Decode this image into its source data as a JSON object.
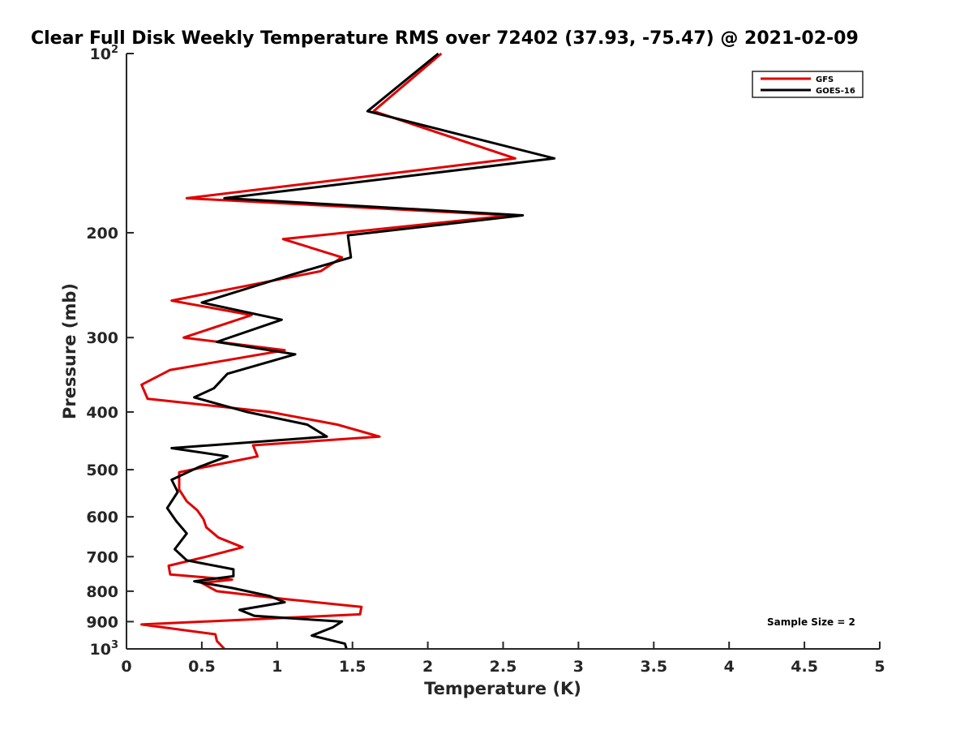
{
  "chart_data": {
    "type": "line",
    "title": "Clear Full Disk Weekly Temperature RMS over 72402 (37.93, -75.47) @ 2021-02-09",
    "xlabel": "Temperature (K)",
    "ylabel": "Pressure (mb)",
    "xlim": [
      0,
      5
    ],
    "ylim": [
      100,
      1000
    ],
    "yscale": "log",
    "y_reversed": true,
    "grid": false,
    "legend_position": "top-right",
    "x_ticks": [
      {
        "value": 0,
        "label": "0"
      },
      {
        "value": 0.5,
        "label": "0.5"
      },
      {
        "value": 1,
        "label": "1"
      },
      {
        "value": 1.5,
        "label": "1.5"
      },
      {
        "value": 2,
        "label": "2"
      },
      {
        "value": 2.5,
        "label": "2.5"
      },
      {
        "value": 3,
        "label": "3"
      },
      {
        "value": 3.5,
        "label": "3.5"
      },
      {
        "value": 4,
        "label": "4"
      },
      {
        "value": 4.5,
        "label": "4.5"
      },
      {
        "value": 5,
        "label": "5"
      }
    ],
    "y_ticks": [
      {
        "value": 100,
        "label": "10",
        "exp": "2"
      },
      {
        "value": 200,
        "label": "200"
      },
      {
        "value": 300,
        "label": "300"
      },
      {
        "value": 400,
        "label": "400"
      },
      {
        "value": 500,
        "label": "500"
      },
      {
        "value": 600,
        "label": "600"
      },
      {
        "value": 700,
        "label": "700"
      },
      {
        "value": 800,
        "label": "800"
      },
      {
        "value": 900,
        "label": "900"
      },
      {
        "value": 1000,
        "label": "10",
        "exp": "3"
      }
    ],
    "annotation": "Sample Size = 2",
    "series": [
      {
        "name": "GFS",
        "color": "#e00000",
        "points": [
          [
            2.09,
            100
          ],
          [
            1.64,
            125
          ],
          [
            2.58,
            150
          ],
          [
            0.4,
            175
          ],
          [
            2.55,
            187
          ],
          [
            1.04,
            205
          ],
          [
            1.43,
            220
          ],
          [
            1.29,
            232
          ],
          [
            0.3,
            260
          ],
          [
            0.83,
            275
          ],
          [
            0.38,
            300
          ],
          [
            1.05,
            315
          ],
          [
            0.29,
            340
          ],
          [
            0.1,
            360
          ],
          [
            0.14,
            380
          ],
          [
            0.95,
            400
          ],
          [
            1.4,
            420
          ],
          [
            1.68,
            440
          ],
          [
            0.84,
            455
          ],
          [
            0.87,
            475
          ],
          [
            0.35,
            505
          ],
          [
            0.35,
            540
          ],
          [
            0.4,
            565
          ],
          [
            0.47,
            585
          ],
          [
            0.51,
            605
          ],
          [
            0.53,
            625
          ],
          [
            0.61,
            650
          ],
          [
            0.77,
            675
          ],
          [
            0.53,
            700
          ],
          [
            0.28,
            725
          ],
          [
            0.29,
            750
          ],
          [
            0.7,
            765
          ],
          [
            0.5,
            775
          ],
          [
            0.6,
            800
          ],
          [
            1.06,
            825
          ],
          [
            1.56,
            850
          ],
          [
            1.55,
            875
          ],
          [
            0.1,
            910
          ],
          [
            0.59,
            945
          ],
          [
            0.6,
            970
          ],
          [
            0.65,
            1000
          ]
        ]
      },
      {
        "name": "GOES-16",
        "color": "#000000",
        "points": [
          [
            2.07,
            100
          ],
          [
            1.6,
            125
          ],
          [
            2.84,
            150
          ],
          [
            0.65,
            175
          ],
          [
            2.63,
            187
          ],
          [
            1.47,
            202
          ],
          [
            1.49,
            220
          ],
          [
            1.1,
            235
          ],
          [
            0.5,
            262
          ],
          [
            1.03,
            280
          ],
          [
            0.6,
            305
          ],
          [
            1.12,
            320
          ],
          [
            0.67,
            345
          ],
          [
            0.58,
            365
          ],
          [
            0.45,
            378
          ],
          [
            0.8,
            400
          ],
          [
            1.2,
            420
          ],
          [
            1.33,
            440
          ],
          [
            0.3,
            460
          ],
          [
            0.67,
            475
          ],
          [
            0.48,
            495
          ],
          [
            0.3,
            520
          ],
          [
            0.34,
            545
          ],
          [
            0.27,
            580
          ],
          [
            0.33,
            610
          ],
          [
            0.4,
            640
          ],
          [
            0.32,
            680
          ],
          [
            0.4,
            710
          ],
          [
            0.71,
            735
          ],
          [
            0.71,
            755
          ],
          [
            0.45,
            770
          ],
          [
            0.7,
            790
          ],
          [
            0.95,
            815
          ],
          [
            1.05,
            835
          ],
          [
            0.75,
            860
          ],
          [
            0.85,
            880
          ],
          [
            1.43,
            900
          ],
          [
            1.37,
            920
          ],
          [
            1.23,
            950
          ],
          [
            1.45,
            980
          ],
          [
            1.46,
            1000
          ]
        ]
      }
    ]
  }
}
